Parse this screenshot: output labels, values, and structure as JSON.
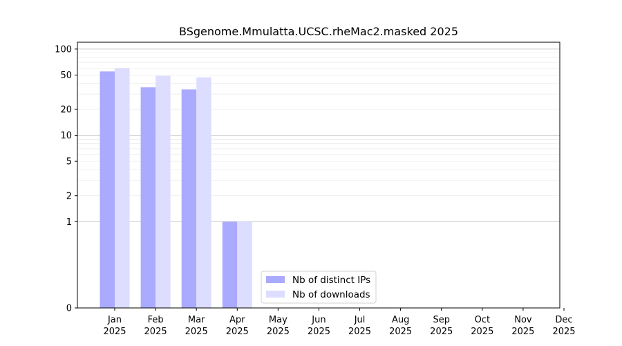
{
  "chart_data": {
    "type": "bar",
    "title": "BSgenome.Mmulatta.UCSC.rheMac2.masked 2025",
    "xlabel": "",
    "ylabel": "",
    "yscale": "symlog",
    "ylim": [
      0,
      120
    ],
    "y_ticks": [
      {
        "value": 0,
        "label": "0"
      },
      {
        "value": 1,
        "label": "1"
      },
      {
        "value": 2,
        "label": "2"
      },
      {
        "value": 5,
        "label": "5"
      },
      {
        "value": 10,
        "label": "10"
      },
      {
        "value": 20,
        "label": "20"
      },
      {
        "value": 50,
        "label": "50"
      },
      {
        "value": 100,
        "label": "100"
      }
    ],
    "grid": true,
    "legend_position": "bottom-center",
    "categories": [
      {
        "month": "Jan",
        "year": "2025"
      },
      {
        "month": "Feb",
        "year": "2025"
      },
      {
        "month": "Mar",
        "year": "2025"
      },
      {
        "month": "Apr",
        "year": "2025"
      },
      {
        "month": "May",
        "year": "2025"
      },
      {
        "month": "Jun",
        "year": "2025"
      },
      {
        "month": "Jul",
        "year": "2025"
      },
      {
        "month": "Aug",
        "year": "2025"
      },
      {
        "month": "Sep",
        "year": "2025"
      },
      {
        "month": "Oct",
        "year": "2025"
      },
      {
        "month": "Nov",
        "year": "2025"
      },
      {
        "month": "Dec",
        "year": "2025"
      }
    ],
    "series": [
      {
        "name": "Nb of distinct IPs",
        "color": "#aaaaff",
        "values": [
          55,
          36,
          34,
          1,
          0,
          0,
          0,
          0,
          0,
          0,
          0,
          0
        ]
      },
      {
        "name": "Nb of downloads",
        "color": "#ddddff",
        "values": [
          60,
          49,
          47,
          1,
          0,
          0,
          0,
          0,
          0,
          0,
          0,
          0
        ]
      }
    ]
  }
}
